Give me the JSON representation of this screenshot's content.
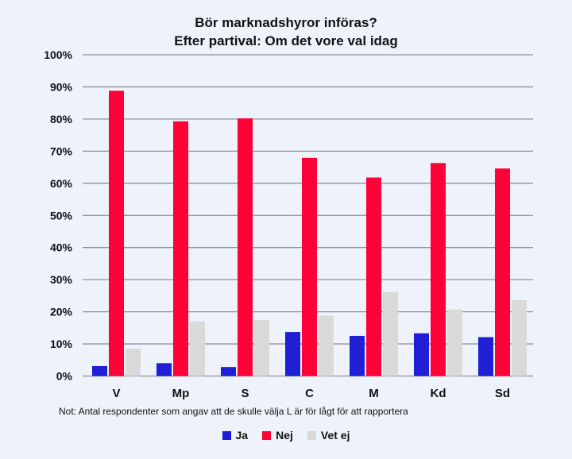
{
  "chart_data": {
    "type": "bar",
    "title": "Bör marknadshyror införas?",
    "subtitle": "Efter partival: Om det vore val idag",
    "categories": [
      "V",
      "Mp",
      "S",
      "C",
      "M",
      "Kd",
      "Sd"
    ],
    "series": [
      {
        "name": "Ja",
        "color": "#1f1fd6",
        "values": [
          3.1,
          4.0,
          2.8,
          13.7,
          12.5,
          13.3,
          12.1
        ]
      },
      {
        "name": "Nej",
        "color": "#ff0037",
        "values": [
          88.8,
          79.3,
          80.2,
          67.9,
          61.8,
          66.3,
          64.6
        ]
      },
      {
        "name": "Vet ej",
        "color": "#d9d9d9",
        "values": [
          8.5,
          17.0,
          17.4,
          18.8,
          26.1,
          20.7,
          23.6
        ]
      }
    ],
    "ylim": [
      0,
      100
    ],
    "yticks": [
      "0%",
      "10%",
      "20%",
      "30%",
      "40%",
      "50%",
      "60%",
      "70%",
      "80%",
      "90%",
      "100%"
    ],
    "grid": true,
    "legend": "bottom",
    "note": "Not: Antal respondenter som angav att de skulle välja  L är för lågt för att rapportera"
  }
}
